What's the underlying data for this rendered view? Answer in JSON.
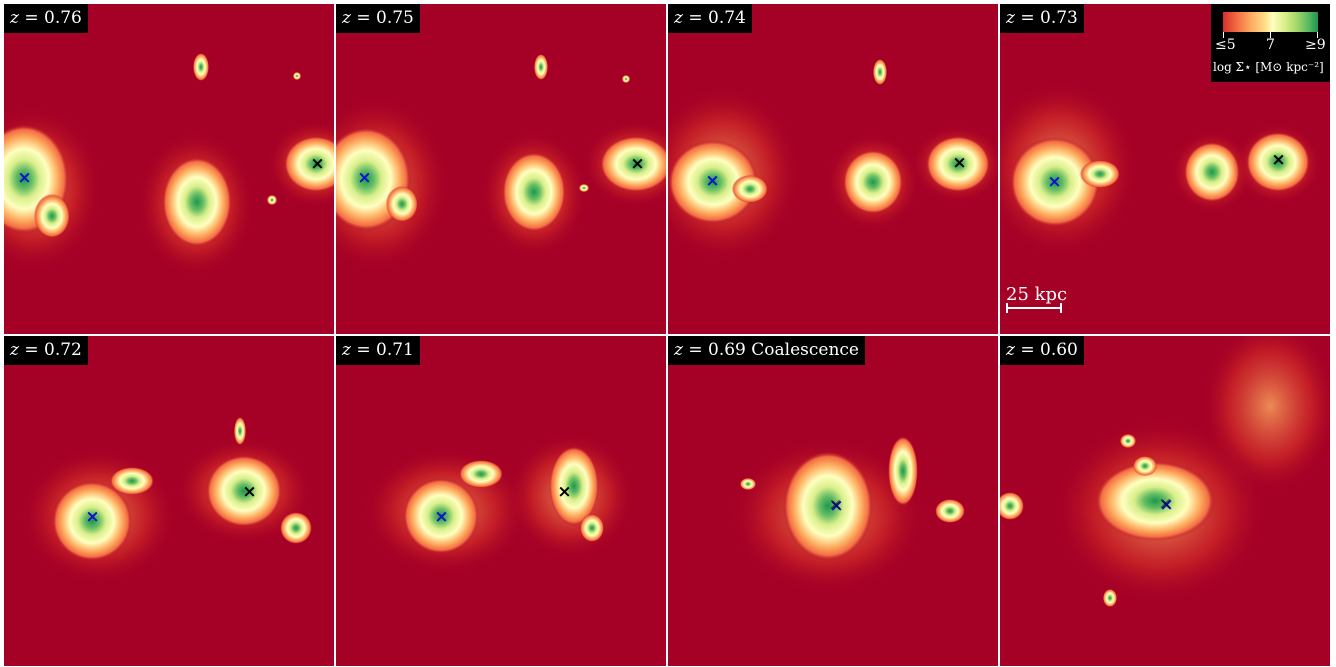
{
  "panels": [
    {
      "z": "0.76",
      "suffix": "",
      "markers": [
        "blue",
        "black"
      ]
    },
    {
      "z": "0.75",
      "suffix": "",
      "markers": [
        "blue",
        "black"
      ]
    },
    {
      "z": "0.74",
      "suffix": "",
      "markers": [
        "blue",
        "black"
      ]
    },
    {
      "z": "0.73",
      "suffix": "",
      "markers": [
        "blue",
        "black"
      ]
    },
    {
      "z": "0.72",
      "suffix": "",
      "markers": [
        "blue",
        "black"
      ]
    },
    {
      "z": "0.71",
      "suffix": "",
      "markers": [
        "blue",
        "black"
      ]
    },
    {
      "z": "0.69",
      "suffix": "Coalescence",
      "markers": [
        "blue",
        "black"
      ]
    },
    {
      "z": "0.60",
      "suffix": "",
      "markers": [
        "blue",
        "black"
      ]
    }
  ],
  "z_prefix": "z = ",
  "colorbar": {
    "min_label": "≤5",
    "mid_label": "7",
    "max_label": "≥9",
    "title": "log Σ⋆ [M⊙ kpc⁻²]",
    "colors": [
      "#d73027",
      "#fdae61",
      "#ffffbf",
      "#a6d96a",
      "#1a9850"
    ],
    "background": "#a50026"
  },
  "scale_bar": {
    "label": "25 kpc"
  },
  "marker_symbol": "×",
  "marker_colors": {
    "blue": "#1010d0",
    "black": "#000000"
  }
}
